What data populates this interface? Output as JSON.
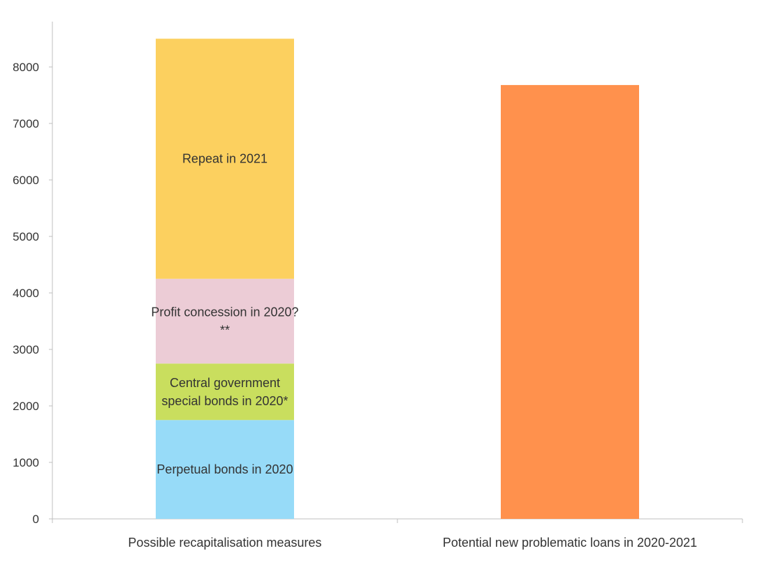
{
  "chart_data": {
    "type": "bar",
    "stacked": true,
    "title": "",
    "xlabel": "",
    "ylabel": "",
    "ylim": [
      0,
      8800
    ],
    "yticks": [
      0,
      1000,
      2000,
      3000,
      4000,
      5000,
      6000,
      7000,
      8000
    ],
    "grid": false,
    "legend": "none",
    "categories": [
      "Possible recapitalisation measures",
      "Potential new problematic loans in 2020-2021"
    ],
    "stack": [
      {
        "category": "Possible recapitalisation measures",
        "segments": [
          {
            "label": [
              "Perpetual bonds in 2020"
            ],
            "value": 1750,
            "color": "#97dbf8"
          },
          {
            "label": [
              "Central government",
              "special bonds in 2020*"
            ],
            "value": 1000,
            "color": "#c9de5e"
          },
          {
            "label": [
              "Profit concession in 2020?",
              "**"
            ],
            "value": 1500,
            "color": "#ecccd6"
          },
          {
            "label": [
              "Repeat in 2021"
            ],
            "value": 4250,
            "color": "#fcd05f"
          }
        ]
      },
      {
        "category": "Potential new problematic loans in 2020-2021",
        "segments": [
          {
            "label": [],
            "value": 7680,
            "color": "#ff914d"
          }
        ]
      }
    ]
  }
}
